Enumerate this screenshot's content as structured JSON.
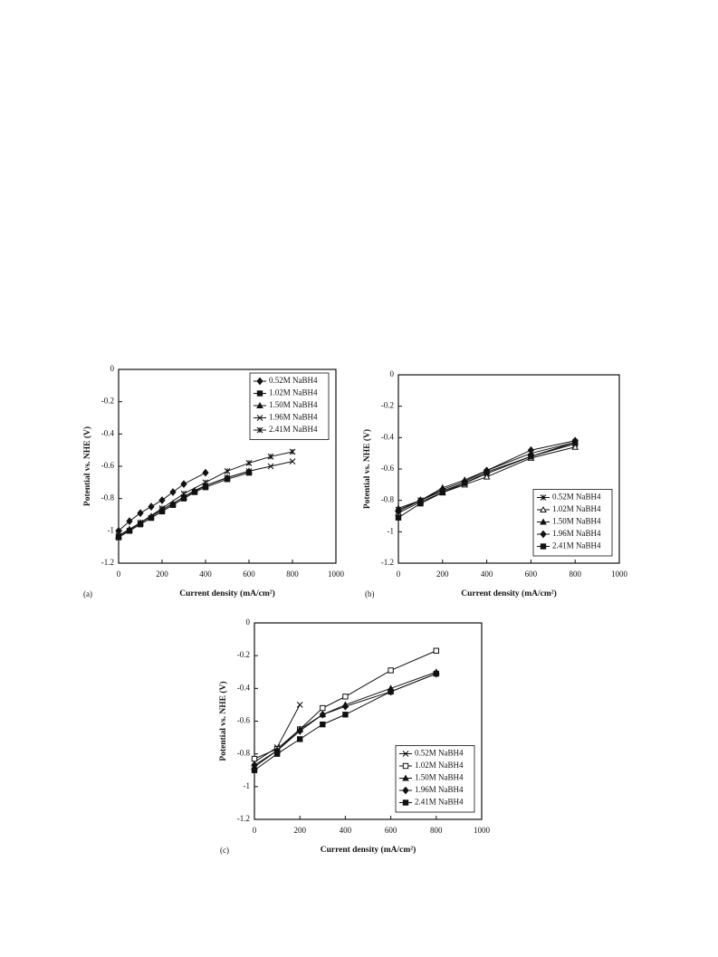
{
  "chart_data": [
    {
      "type": "line",
      "label": "(a)",
      "xlabel": "Current density (mA/cm²)",
      "ylabel": "Potential vs. NHE (V)",
      "xlim": [
        0,
        1000
      ],
      "xticks": [
        0,
        200,
        400,
        600,
        800,
        1000
      ],
      "ylim": [
        -1.2,
        0
      ],
      "yticks": [
        0,
        -0.2,
        -0.4,
        -0.6,
        -0.8,
        -1,
        -1.2
      ],
      "legend": "upper right",
      "series": [
        {
          "name": "0.52M NaBH4",
          "color": "#111111",
          "marker": "diamond",
          "x": [
            0,
            50,
            100,
            150,
            200,
            250,
            300,
            400
          ],
          "values": [
            -1.0,
            -0.94,
            -0.89,
            -0.85,
            -0.81,
            -0.76,
            -0.71,
            -0.64
          ]
        },
        {
          "name": "1.02M NaBH4",
          "color": "#111111",
          "marker": "square",
          "x": [
            0,
            50,
            100,
            150,
            200,
            250,
            300,
            350,
            400,
            500,
            600
          ],
          "values": [
            -1.04,
            -1.0,
            -0.96,
            -0.92,
            -0.88,
            -0.84,
            -0.8,
            -0.76,
            -0.73,
            -0.68,
            -0.64
          ]
        },
        {
          "name": "1.50M NaBH4",
          "color": "#111111",
          "marker": "triangle",
          "x": [
            0,
            50,
            100,
            150,
            200,
            250,
            300,
            350,
            400,
            500,
            600
          ],
          "values": [
            -1.03,
            -0.99,
            -0.95,
            -0.91,
            -0.87,
            -0.83,
            -0.79,
            -0.75,
            -0.72,
            -0.67,
            -0.63
          ]
        },
        {
          "name": "1.96M NaBH4",
          "color": "#111111",
          "marker": "x",
          "x": [
            0,
            100,
            200,
            300,
            400,
            500,
            600,
            700,
            800
          ],
          "values": [
            -1.03,
            -0.95,
            -0.87,
            -0.79,
            -0.72,
            -0.67,
            -0.63,
            -0.6,
            -0.57
          ]
        },
        {
          "name": "2.41M NaBH4",
          "color": "#111111",
          "marker": "asterisk",
          "x": [
            0,
            100,
            200,
            300,
            400,
            500,
            600,
            700,
            800
          ],
          "values": [
            -1.04,
            -0.95,
            -0.86,
            -0.77,
            -0.7,
            -0.63,
            -0.58,
            -0.54,
            -0.51
          ]
        }
      ]
    },
    {
      "type": "line",
      "label": "(b)",
      "xlabel": "Current density (mA/cm²)",
      "ylabel": "Potential vs. NHE (V)",
      "xlim": [
        0,
        1000
      ],
      "xticks": [
        0,
        200,
        400,
        600,
        800,
        1000
      ],
      "ylim": [
        -1.2,
        0
      ],
      "yticks": [
        0,
        -0.2,
        -0.4,
        -0.6,
        -0.8,
        -1,
        -1.2
      ],
      "legend": "lower right",
      "series": [
        {
          "name": "0.52M NaBH4",
          "color": "#111111",
          "marker": "asterisk",
          "x": [
            0,
            100,
            200,
            300,
            400,
            600,
            800
          ],
          "values": [
            -0.86,
            -0.8,
            -0.74,
            -0.69,
            -0.63,
            -0.52,
            -0.44
          ]
        },
        {
          "name": "1.02M NaBH4",
          "color": "#111111",
          "marker": "open-triangle",
          "x": [
            0,
            100,
            200,
            300,
            400,
            600,
            800
          ],
          "values": [
            -0.88,
            -0.81,
            -0.75,
            -0.7,
            -0.65,
            -0.53,
            -0.46
          ]
        },
        {
          "name": "1.50M NaBH4",
          "color": "#111111",
          "marker": "triangle",
          "x": [
            0,
            100,
            200,
            300,
            400,
            600,
            800
          ],
          "values": [
            -0.85,
            -0.8,
            -0.72,
            -0.67,
            -0.61,
            -0.5,
            -0.43
          ]
        },
        {
          "name": "1.96M NaBH4",
          "color": "#111111",
          "marker": "diamond",
          "x": [
            0,
            100,
            200,
            300,
            400,
            600,
            800
          ],
          "values": [
            -0.87,
            -0.8,
            -0.73,
            -0.68,
            -0.61,
            -0.48,
            -0.42
          ]
        },
        {
          "name": "2.41M NaBH4",
          "color": "#111111",
          "marker": "square",
          "x": [
            0,
            100,
            200,
            300,
            400,
            600,
            800
          ],
          "values": [
            -0.91,
            -0.82,
            -0.75,
            -0.69,
            -0.62,
            -0.52,
            -0.43
          ]
        }
      ]
    },
    {
      "type": "line",
      "label": "(c)",
      "xlabel": "Current density (mA/cm²)",
      "ylabel": "Potential vs. NHE (V)",
      "xlim": [
        0,
        1000
      ],
      "xticks": [
        0,
        200,
        400,
        600,
        800,
        1000
      ],
      "ylim": [
        -1.2,
        0
      ],
      "yticks": [
        0,
        -0.2,
        -0.4,
        -0.6,
        -0.8,
        -1,
        -1.2
      ],
      "legend": "lower right",
      "series": [
        {
          "name": "0.52M NaBH4",
          "color": "#111111",
          "marker": "x",
          "x": [
            0,
            100,
            200
          ],
          "values": [
            -0.85,
            -0.76,
            -0.5
          ]
        },
        {
          "name": "1.02M NaBH4",
          "color": "#111111",
          "marker": "open-square",
          "x": [
            0,
            100,
            200,
            300,
            400,
            600,
            800
          ],
          "values": [
            -0.83,
            -0.77,
            -0.65,
            -0.52,
            -0.45,
            -0.29,
            -0.17
          ]
        },
        {
          "name": "1.50M NaBH4",
          "color": "#111111",
          "marker": "triangle",
          "x": [
            0,
            100,
            200,
            300,
            400,
            600,
            800
          ],
          "values": [
            -0.88,
            -0.78,
            -0.65,
            -0.56,
            -0.5,
            -0.4,
            -0.3
          ]
        },
        {
          "name": "1.96M NaBH4",
          "color": "#111111",
          "marker": "diamond",
          "x": [
            0,
            100,
            200,
            300,
            400,
            600,
            800
          ],
          "values": [
            -0.87,
            -0.78,
            -0.66,
            -0.56,
            -0.51,
            -0.42,
            -0.31
          ]
        },
        {
          "name": "2.41M NaBH4",
          "color": "#111111",
          "marker": "square",
          "x": [
            0,
            100,
            200,
            300,
            400,
            600,
            800
          ],
          "values": [
            -0.9,
            -0.8,
            -0.71,
            -0.62,
            -0.56,
            -0.42,
            -0.31
          ]
        }
      ]
    }
  ]
}
